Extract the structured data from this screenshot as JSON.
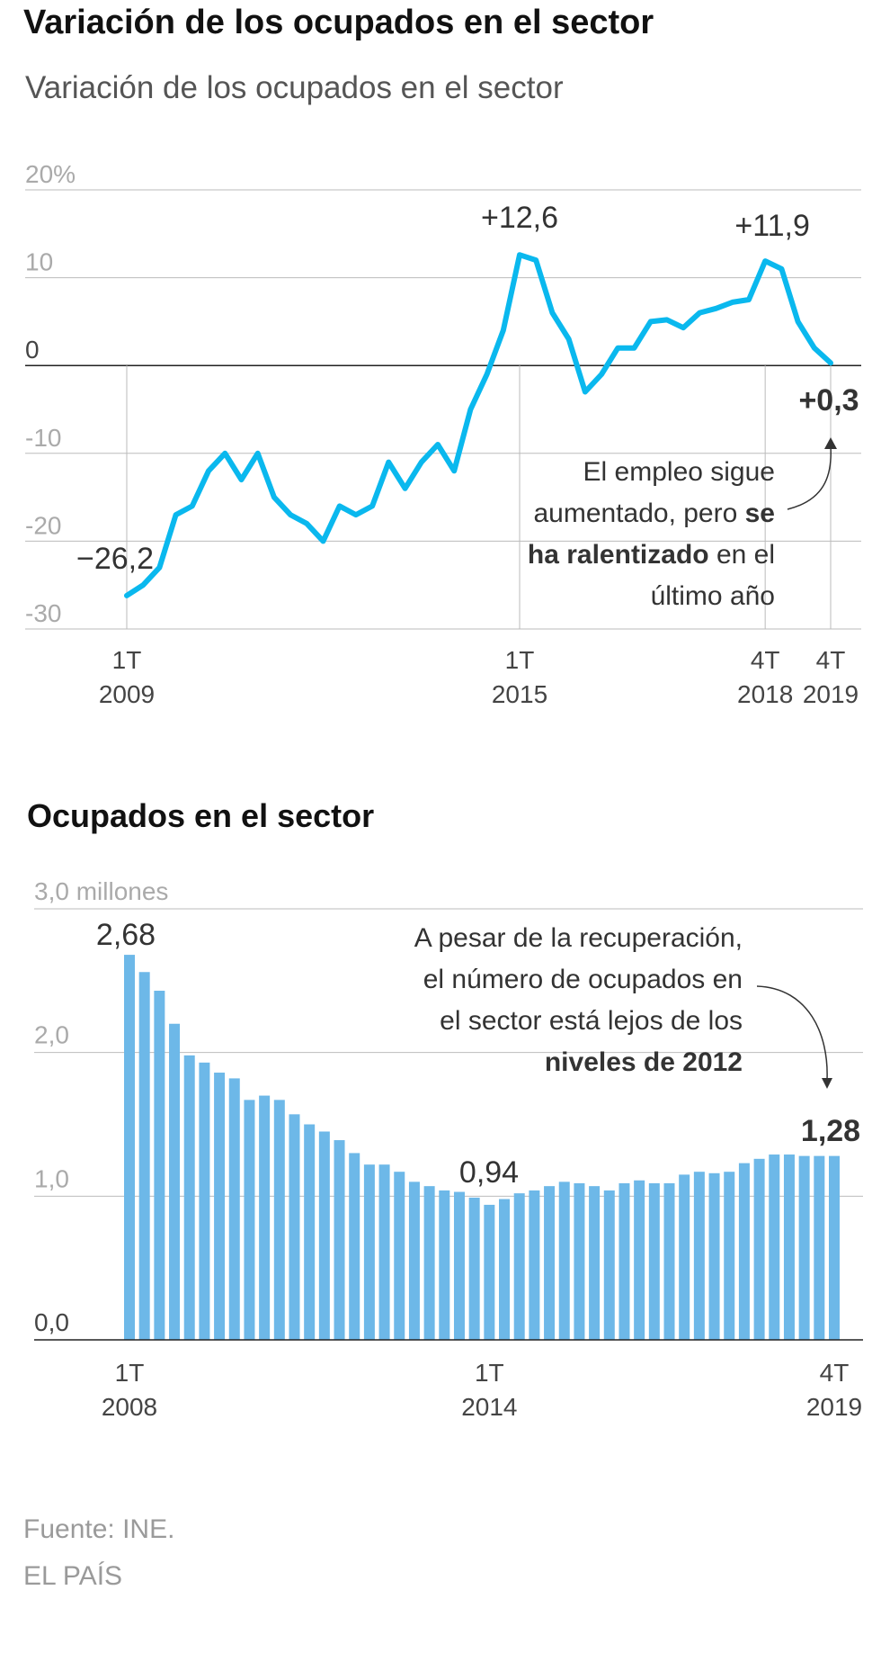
{
  "chart_data": [
    {
      "type": "line",
      "title": "Variación de los ocupados en el sector",
      "subtitle": "Variación de los ocupados en el sector",
      "ylim": [
        -30,
        20
      ],
      "y_ticks": [
        {
          "value": 20,
          "label": "20%"
        },
        {
          "value": 10,
          "label": "10"
        },
        {
          "value": 0,
          "label": "0"
        },
        {
          "value": -10,
          "label": "-10"
        },
        {
          "value": -20,
          "label": "-20"
        },
        {
          "value": -30,
          "label": "-30"
        }
      ],
      "x_ticks": [
        {
          "index": 0,
          "top": "1T",
          "bottom": "2009"
        },
        {
          "index": 24,
          "top": "1T",
          "bottom": "2015"
        },
        {
          "index": 39,
          "top": "4T",
          "bottom": "2018"
        },
        {
          "index": 43,
          "top": "4T",
          "bottom": "2019"
        }
      ],
      "series": [
        {
          "name": "Variación de los ocupados",
          "color": "#0ab8ee",
          "values": [
            -26.2,
            -25.0,
            -23.0,
            -17.0,
            -16.0,
            -12.0,
            -10.0,
            -13.0,
            -10.0,
            -15.0,
            -17.0,
            -18.0,
            -20.0,
            -16.0,
            -17.0,
            -16.0,
            -11.0,
            -14.0,
            -11.0,
            -9.0,
            -12.0,
            -5.0,
            -1.0,
            4.0,
            12.6,
            12.0,
            6.0,
            3.0,
            -3.0,
            -1.0,
            2.0,
            2.0,
            5.0,
            5.2,
            4.3,
            6.0,
            6.5,
            7.2,
            7.5,
            11.9,
            11.0,
            5.0,
            2.0,
            0.3
          ]
        }
      ],
      "data_labels": [
        {
          "index": 0,
          "text": "−26,2"
        },
        {
          "index": 24,
          "text": "+12,6"
        },
        {
          "index": 39,
          "text": "+11,9"
        },
        {
          "index": 43,
          "text": "+0,3"
        }
      ],
      "annotation_lines": [
        [
          {
            "text": "El empleo sigue",
            "bold": false
          }
        ],
        [
          {
            "text": "aumentado, pero ",
            "bold": false
          },
          {
            "text": "se",
            "bold": true
          }
        ],
        [
          {
            "text": "ha ralentizado",
            "bold": true
          },
          {
            "text": " en el",
            "bold": false
          }
        ],
        [
          {
            "text": "último año",
            "bold": false
          }
        ]
      ]
    },
    {
      "type": "bar",
      "title": "Ocupados en el sector",
      "ylim": [
        0,
        3.0
      ],
      "y_ticks": [
        {
          "value": 3.0,
          "label": "3,0 millones"
        },
        {
          "value": 2.0,
          "label": "2,0"
        },
        {
          "value": 1.0,
          "label": "1,0"
        },
        {
          "value": 0.0,
          "label": "0,0"
        }
      ],
      "x_ticks": [
        {
          "index": 0,
          "top": "1T",
          "bottom": "2008"
        },
        {
          "index": 24,
          "top": "1T",
          "bottom": "2014"
        },
        {
          "index": 47,
          "top": "4T",
          "bottom": "2019"
        }
      ],
      "color": "#6db8e8",
      "values": [
        2.68,
        2.56,
        2.43,
        2.2,
        1.98,
        1.93,
        1.86,
        1.82,
        1.67,
        1.7,
        1.67,
        1.57,
        1.5,
        1.45,
        1.39,
        1.3,
        1.22,
        1.22,
        1.17,
        1.1,
        1.07,
        1.04,
        1.03,
        0.99,
        0.94,
        0.98,
        1.02,
        1.04,
        1.07,
        1.1,
        1.09,
        1.07,
        1.04,
        1.09,
        1.11,
        1.09,
        1.09,
        1.15,
        1.17,
        1.16,
        1.17,
        1.23,
        1.26,
        1.29,
        1.29,
        1.28,
        1.28,
        1.28
      ],
      "data_labels": [
        {
          "index": 0,
          "text": "2,68"
        },
        {
          "index": 24,
          "text": "0,94"
        },
        {
          "index": 47,
          "text": "1,28"
        }
      ],
      "annotation_lines": [
        [
          {
            "text": "A pesar de la recuperación,",
            "bold": false
          }
        ],
        [
          {
            "text": "el número de ocupados en",
            "bold": false
          }
        ],
        [
          {
            "text": "el sector está lejos de los",
            "bold": false
          }
        ],
        [
          {
            "text": "niveles de 2012",
            "bold": true
          }
        ]
      ]
    }
  ],
  "footer": {
    "source": "Fuente: INE.",
    "publisher": "EL PAÍS"
  }
}
